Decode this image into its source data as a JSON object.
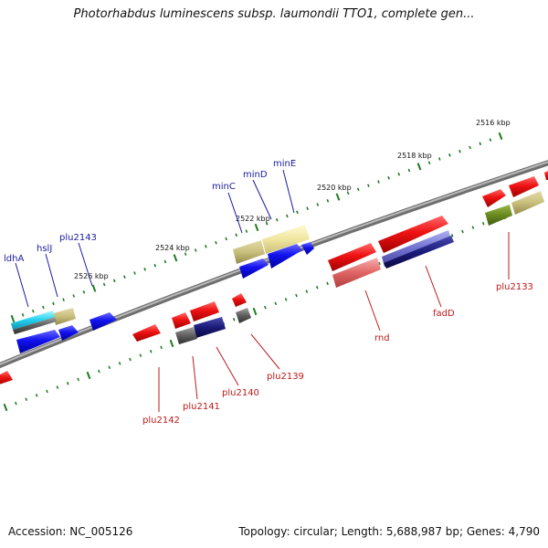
{
  "title": "Photorhabdus luminescens subsp. laumondii TTO1, complete gen...",
  "footer": {
    "accession": "Accession: NC_005126",
    "summary": "Topology: circular; Length: 5,688,987 bp; Genes: 4,790"
  },
  "scale_labels": [
    "2516 kbp",
    "2518 kbp",
    "2520 kbp",
    "2522 kbp",
    "2524 kbp",
    "2526 kbp"
  ],
  "forward_genes": [
    "minE",
    "minD",
    "minC",
    "plu2143",
    "hslJ",
    "ldhA"
  ],
  "reverse_genes": [
    "plu2133",
    "fadD",
    "rnd",
    "plu2139",
    "plu2140",
    "plu2141",
    "plu2142"
  ],
  "colors": {
    "backbone": "#8a8a8a",
    "tick": "#1f7a1f",
    "forward_label": "#1a1aa0",
    "reverse_label": "#c01818",
    "red_gene": "#e81010",
    "blue_gene": "#1010e0",
    "khaki_gene": "#c8c080",
    "pale_yellow_gene": "#f0e8a0",
    "navy_gene": "#1a1a70",
    "olive_gene": "#6a8a20",
    "gray_gene": "#606060",
    "cyan_gene": "#20d0f0",
    "pink_gene": "#e06060",
    "purple_gene": "#7070d0"
  }
}
